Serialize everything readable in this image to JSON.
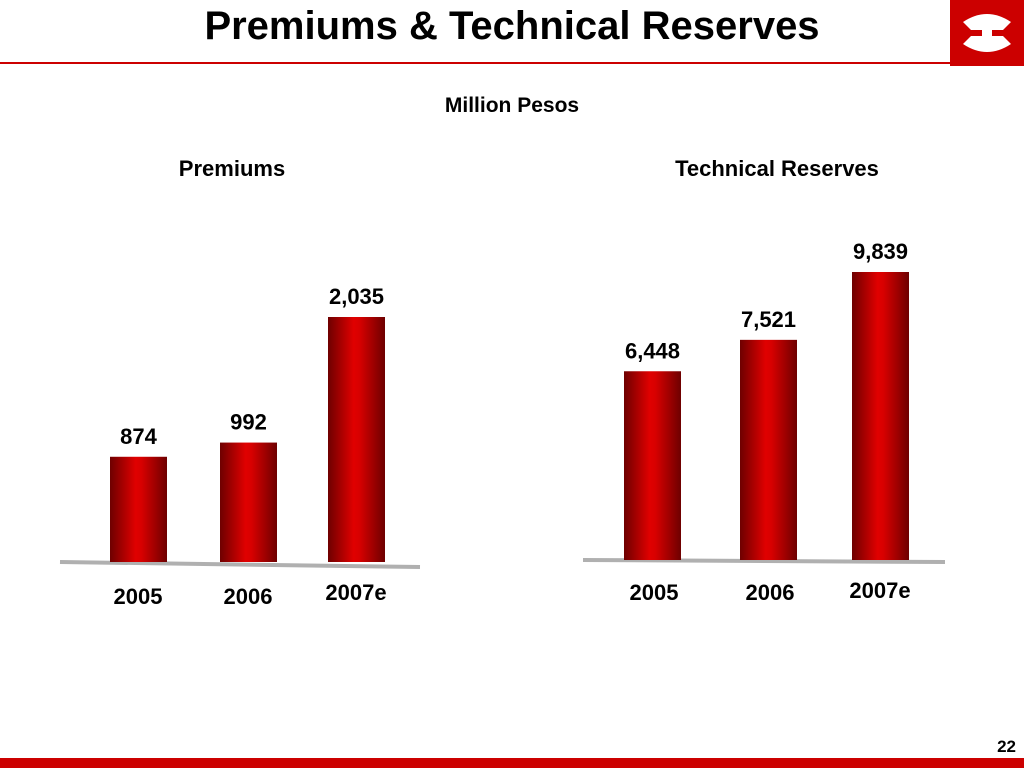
{
  "title": "Premiums & Technical Reserves",
  "subtitle": "Million Pesos",
  "page_number": "22",
  "colors": {
    "accent": "#cc0000",
    "bar_dark": "#6e0000",
    "bar_light": "#e00000",
    "baseline": "#b0b0b0"
  },
  "logo": {
    "icon": "company-logo-icon"
  },
  "chart_data": [
    {
      "type": "bar",
      "title": "Premiums",
      "categories": [
        "2005",
        "2006",
        "2007e"
      ],
      "values": [
        874,
        992,
        2035
      ],
      "value_labels": [
        "874",
        "992",
        "2,035"
      ],
      "grid": false
    },
    {
      "type": "bar",
      "title": "Technical Reserves",
      "categories": [
        "2005",
        "2006",
        "2007e"
      ],
      "values": [
        6448,
        7521,
        9839
      ],
      "value_labels": [
        "6,448",
        "7,521",
        "9,839"
      ],
      "grid": false
    }
  ]
}
